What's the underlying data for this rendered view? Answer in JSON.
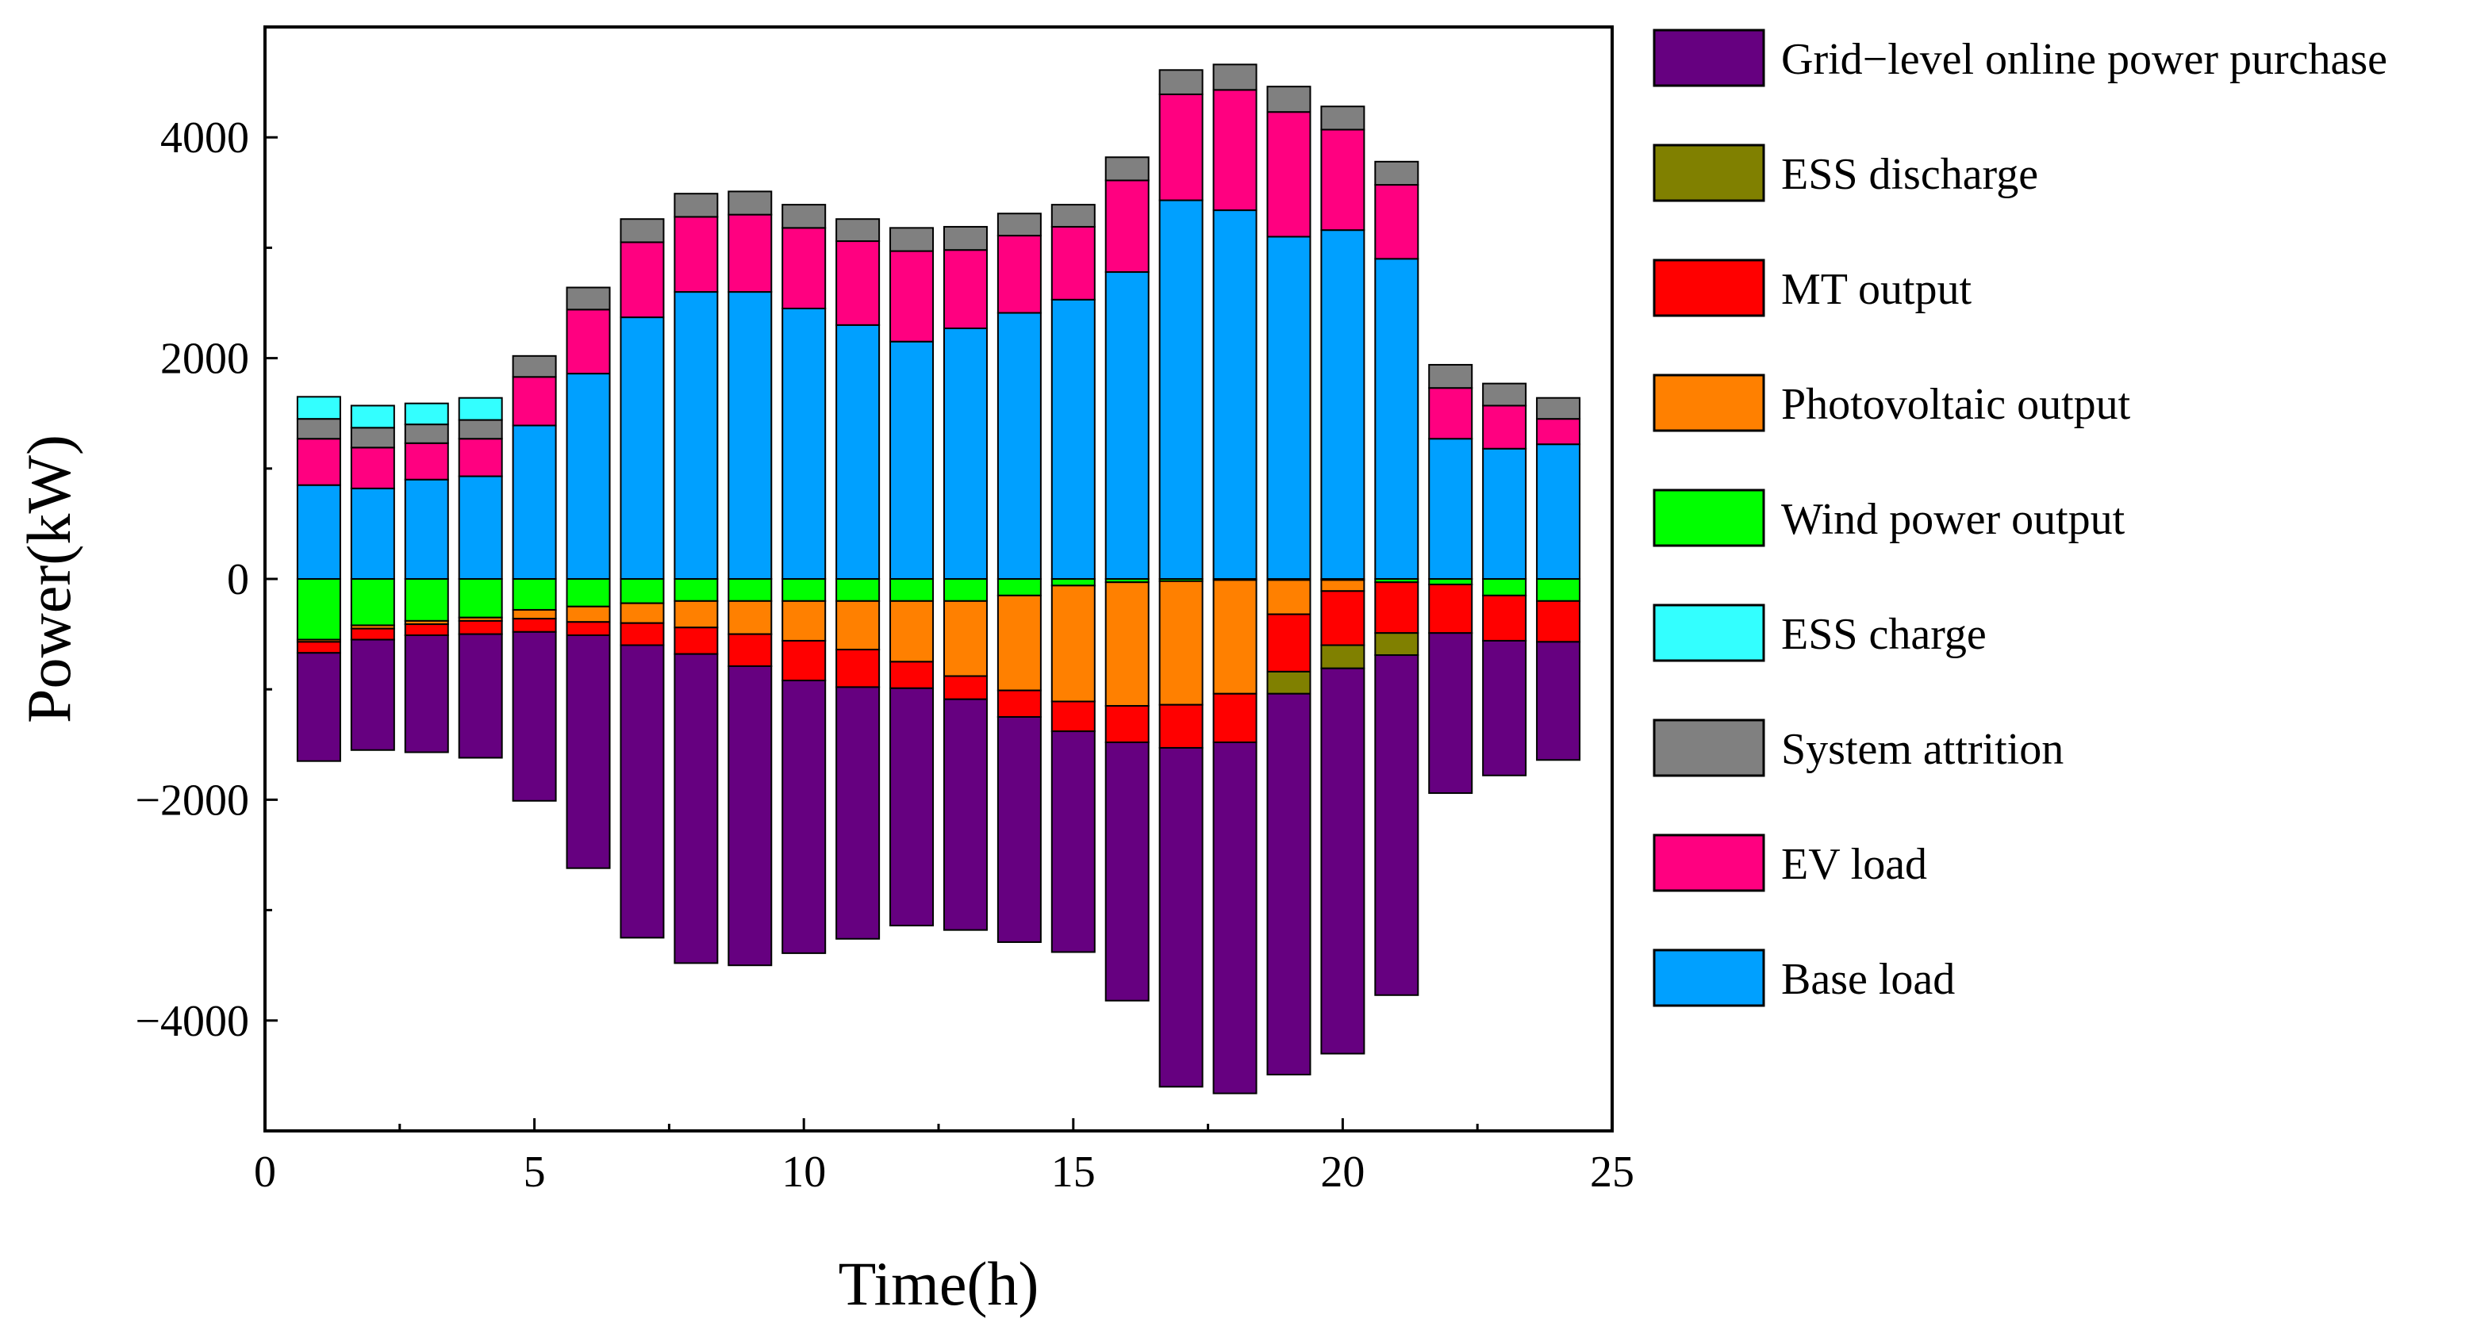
{
  "chart_data": {
    "type": "bar",
    "subtype": "stacked-diverging",
    "title": "",
    "xlabel": "Time(h)",
    "ylabel": "Power(kW)",
    "xlim": [
      0,
      25
    ],
    "ylim": [
      -5000,
      5000
    ],
    "xticks": [
      0,
      5,
      10,
      15,
      20,
      25
    ],
    "xtick_labels": [
      "0",
      "5",
      "10",
      "15",
      "20",
      "25"
    ],
    "yticks": [
      -4000,
      -2000,
      0,
      2000,
      4000
    ],
    "ytick_labels": [
      "−4000",
      "−2000",
      "0",
      "2000",
      "4000"
    ],
    "grid": false,
    "legend_position": "outside-right",
    "x": [
      1,
      2,
      3,
      4,
      5,
      6,
      7,
      8,
      9,
      10,
      11,
      12,
      13,
      14,
      15,
      16,
      17,
      18,
      19,
      20,
      21,
      22,
      23,
      24
    ],
    "legend_order": [
      "Grid−level online power purchase",
      "ESS discharge",
      "MT output",
      "Photovoltaic output",
      "Wind power output",
      "ESS charge",
      "System attrition",
      "EV load",
      "Base load"
    ],
    "series_positive": [
      {
        "name": "Base load",
        "color": "#00A0FF",
        "values": [
          850,
          820,
          900,
          930,
          1390,
          1860,
          2370,
          2600,
          2600,
          2450,
          2300,
          2150,
          2270,
          2410,
          2530,
          2780,
          3430,
          3340,
          3100,
          3160,
          2900,
          1270,
          1180,
          1220
        ]
      },
      {
        "name": "EV load",
        "color": "#FF0080",
        "values": [
          420,
          370,
          330,
          340,
          440,
          580,
          680,
          680,
          700,
          730,
          760,
          820,
          710,
          700,
          660,
          830,
          960,
          1090,
          1130,
          910,
          670,
          460,
          390,
          230
        ]
      },
      {
        "name": "System attrition",
        "color": "#808080",
        "values": [
          180,
          180,
          170,
          170,
          190,
          200,
          210,
          210,
          210,
          210,
          200,
          210,
          210,
          200,
          200,
          210,
          220,
          230,
          230,
          210,
          210,
          210,
          200,
          190
        ]
      },
      {
        "name": "ESS charge",
        "color": "#33FFFF",
        "values": [
          200,
          200,
          190,
          200,
          0,
          0,
          0,
          0,
          0,
          0,
          0,
          0,
          0,
          0,
          0,
          0,
          0,
          0,
          0,
          0,
          0,
          0,
          0,
          0
        ]
      }
    ],
    "series_negative": [
      {
        "name": "Wind power output",
        "color": "#00FF00",
        "values": [
          550,
          420,
          380,
          350,
          280,
          250,
          220,
          200,
          200,
          200,
          200,
          200,
          200,
          150,
          60,
          30,
          20,
          10,
          10,
          10,
          30,
          50,
          150,
          200
        ]
      },
      {
        "name": "Photovoltaic output",
        "color": "#FF8000",
        "values": [
          20,
          30,
          30,
          30,
          80,
          140,
          180,
          240,
          300,
          360,
          440,
          550,
          680,
          860,
          1050,
          1120,
          1120,
          1030,
          310,
          100,
          0,
          0,
          0,
          0
        ]
      },
      {
        "name": "MT output",
        "color": "#FF0000",
        "values": [
          100,
          100,
          100,
          120,
          120,
          120,
          200,
          240,
          290,
          360,
          340,
          240,
          210,
          240,
          270,
          330,
          390,
          440,
          520,
          490,
          460,
          440,
          410,
          370
        ]
      },
      {
        "name": "ESS discharge",
        "color": "#808000",
        "values": [
          0,
          0,
          0,
          0,
          0,
          0,
          0,
          0,
          0,
          0,
          0,
          0,
          0,
          0,
          0,
          0,
          0,
          0,
          200,
          210,
          200,
          0,
          0,
          0
        ]
      },
      {
        "name": "Grid−level online power purchase",
        "color": "#660080",
        "values": [
          980,
          1000,
          1060,
          1120,
          1530,
          2110,
          2650,
          2800,
          2710,
          2470,
          2280,
          2150,
          2090,
          2040,
          2000,
          2340,
          3070,
          3180,
          3450,
          3490,
          3080,
          1450,
          1220,
          1070
        ]
      }
    ]
  }
}
